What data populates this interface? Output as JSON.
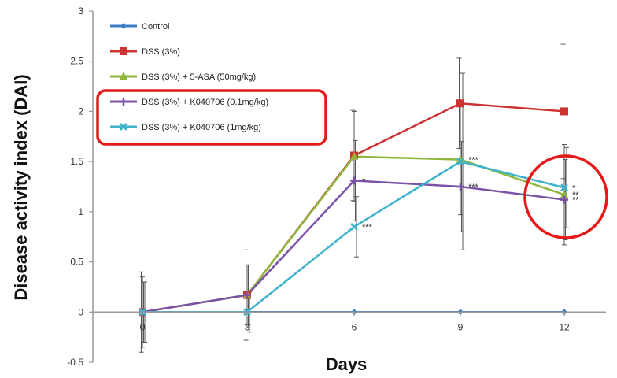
{
  "chart_data": {
    "type": "line",
    "title": "",
    "xlabel": "Days",
    "ylabel": "Disease activity index (DAI)",
    "x": [
      0,
      3,
      6,
      9,
      12
    ],
    "x_tick_labels": [
      "0",
      "3",
      "6",
      "9",
      "12"
    ],
    "ylim": [
      -0.5,
      3
    ],
    "y_ticks": [
      -0.5,
      0,
      0.5,
      1,
      1.5,
      2,
      2.5,
      3
    ],
    "y_tick_labels": [
      "-0.5",
      "0",
      "0.5",
      "1",
      "1.5",
      "2",
      "2.5",
      "3"
    ],
    "grid": false,
    "legend_position": "top-left",
    "series": [
      {
        "name": "Control",
        "color": "#3b7dc4",
        "marker": "diamond",
        "values": [
          0,
          0,
          0,
          0,
          0
        ],
        "errors": [
          0,
          0,
          0,
          0,
          0
        ],
        "sig": [
          "",
          "",
          "",
          "",
          ""
        ]
      },
      {
        "name": "DSS (3%)",
        "color": "#cc3333",
        "marker": "square",
        "values": [
          0,
          0.17,
          1.56,
          2.08,
          2.0
        ],
        "errors": [
          0.4,
          0.45,
          0.45,
          0.45,
          0.67
        ],
        "sig": [
          "",
          "",
          "",
          "",
          ""
        ]
      },
      {
        "name": "DSS (3%) + 5-ASA (50mg/kg)",
        "color": "#8db83c",
        "marker": "triangle",
        "values": [
          0,
          0.17,
          1.55,
          1.52,
          1.17
        ],
        "errors": [
          0.35,
          0.3,
          0.45,
          0.55,
          0.5
        ],
        "sig": [
          "",
          "",
          "",
          "***",
          "**"
        ]
      },
      {
        "name": "DSS (3%) + K040706 (0.1mg/kg)",
        "color": "#7b52a8",
        "marker": "cross",
        "values": [
          0,
          0.17,
          1.31,
          1.25,
          1.12
        ],
        "errors": [
          0.3,
          0.3,
          0.4,
          0.45,
          0.4
        ],
        "sig": [
          "",
          "",
          "*",
          "***",
          "**"
        ]
      },
      {
        "name": "DSS (3%) + K040706 (1mg/kg)",
        "color": "#3fb3cc",
        "marker": "x",
        "values": [
          0,
          0,
          0.85,
          1.5,
          1.24
        ],
        "errors": [
          0.3,
          0.2,
          0.3,
          0.88,
          0.4
        ],
        "sig": [
          "",
          "",
          "***",
          "",
          "*"
        ]
      }
    ],
    "annotations": {
      "legend_highlight_color": "#e61919",
      "circle_highlight_color": "#e61919",
      "legend_highlight_series": [
        3,
        4
      ],
      "circle_highlight_x": 12
    }
  }
}
